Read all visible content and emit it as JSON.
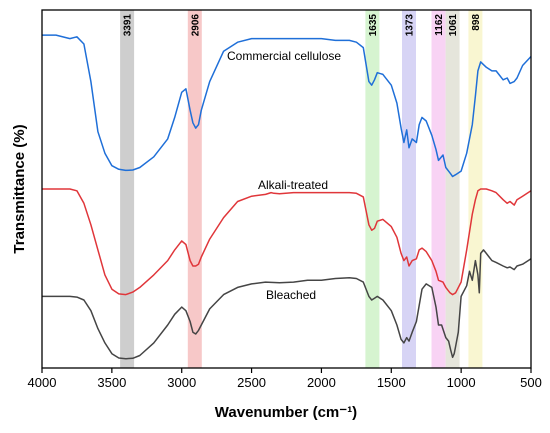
{
  "chart_data": {
    "type": "line",
    "title": "",
    "xlabel": "Wavenumber (cm⁻¹)",
    "ylabel": "Transmittance (%)",
    "xlim": [
      4000,
      500
    ],
    "x_reversed": true,
    "x_ticks": [
      "4000",
      "3500",
      "3000",
      "2500",
      "2000",
      "1500",
      "1000",
      "500"
    ],
    "y_ticks_shown": false,
    "grid": false,
    "bands": [
      {
        "label": "3391",
        "x": 3391,
        "color": "#bdbdbd"
      },
      {
        "label": "2906",
        "x": 2906,
        "color": "#f4b6b6"
      },
      {
        "label": "1635",
        "x": 1635,
        "color": "#c8f0c0"
      },
      {
        "label": "1373",
        "x": 1373,
        "color": "#c9c6f2"
      },
      {
        "label": "1162",
        "x": 1162,
        "color": "#f5c4f0"
      },
      {
        "label": "1061",
        "x": 1061,
        "color": "#dcdccf"
      },
      {
        "label": "898",
        "x": 898,
        "color": "#f7f3c2"
      }
    ],
    "series": [
      {
        "name": "Commercial cellulose",
        "color": "#1f6fd8",
        "points": [
          [
            4000,
            0.93
          ],
          [
            3900,
            0.93
          ],
          [
            3800,
            0.92
          ],
          [
            3750,
            0.925
          ],
          [
            3700,
            0.905
          ],
          [
            3650,
            0.8
          ],
          [
            3600,
            0.66
          ],
          [
            3550,
            0.6
          ],
          [
            3500,
            0.565
          ],
          [
            3450,
            0.555
          ],
          [
            3400,
            0.552
          ],
          [
            3350,
            0.553
          ],
          [
            3300,
            0.56
          ],
          [
            3200,
            0.59
          ],
          [
            3100,
            0.64
          ],
          [
            3050,
            0.7
          ],
          [
            3000,
            0.77
          ],
          [
            2970,
            0.78
          ],
          [
            2940,
            0.72
          ],
          [
            2920,
            0.685
          ],
          [
            2900,
            0.67
          ],
          [
            2880,
            0.68
          ],
          [
            2860,
            0.72
          ],
          [
            2800,
            0.8
          ],
          [
            2700,
            0.885
          ],
          [
            2600,
            0.91
          ],
          [
            2500,
            0.92
          ],
          [
            2400,
            0.92
          ],
          [
            2300,
            0.92
          ],
          [
            2200,
            0.92
          ],
          [
            2100,
            0.92
          ],
          [
            2000,
            0.92
          ],
          [
            1900,
            0.915
          ],
          [
            1800,
            0.915
          ],
          [
            1750,
            0.91
          ],
          [
            1700,
            0.895
          ],
          [
            1660,
            0.8
          ],
          [
            1640,
            0.79
          ],
          [
            1620,
            0.805
          ],
          [
            1600,
            0.825
          ],
          [
            1560,
            0.82
          ],
          [
            1500,
            0.79
          ],
          [
            1460,
            0.74
          ],
          [
            1430,
            0.67
          ],
          [
            1410,
            0.63
          ],
          [
            1390,
            0.665
          ],
          [
            1373,
            0.615
          ],
          [
            1350,
            0.64
          ],
          [
            1320,
            0.63
          ],
          [
            1300,
            0.68
          ],
          [
            1280,
            0.7
          ],
          [
            1250,
            0.69
          ],
          [
            1210,
            0.65
          ],
          [
            1180,
            0.61
          ],
          [
            1162,
            0.58
          ],
          [
            1130,
            0.595
          ],
          [
            1110,
            0.56
          ],
          [
            1080,
            0.545
          ],
          [
            1061,
            0.535
          ],
          [
            1040,
            0.54
          ],
          [
            1000,
            0.55
          ],
          [
            960,
            0.6
          ],
          [
            920,
            0.68
          ],
          [
            898,
            0.76
          ],
          [
            880,
            0.83
          ],
          [
            860,
            0.855
          ],
          [
            820,
            0.84
          ],
          [
            780,
            0.83
          ],
          [
            750,
            0.83
          ],
          [
            700,
            0.805
          ],
          [
            670,
            0.81
          ],
          [
            650,
            0.795
          ],
          [
            620,
            0.8
          ],
          [
            600,
            0.81
          ],
          [
            560,
            0.845
          ],
          [
            500,
            0.87
          ]
        ]
      },
      {
        "name": "Alkali-treated",
        "color": "#e0363a",
        "points": [
          [
            4000,
            0.5
          ],
          [
            3900,
            0.5
          ],
          [
            3800,
            0.5
          ],
          [
            3750,
            0.495
          ],
          [
            3700,
            0.46
          ],
          [
            3650,
            0.4
          ],
          [
            3600,
            0.33
          ],
          [
            3550,
            0.26
          ],
          [
            3500,
            0.22
          ],
          [
            3450,
            0.207
          ],
          [
            3400,
            0.205
          ],
          [
            3350,
            0.212
          ],
          [
            3300,
            0.225
          ],
          [
            3200,
            0.26
          ],
          [
            3100,
            0.3
          ],
          [
            3050,
            0.33
          ],
          [
            3000,
            0.355
          ],
          [
            2970,
            0.345
          ],
          [
            2940,
            0.3
          ],
          [
            2920,
            0.285
          ],
          [
            2900,
            0.285
          ],
          [
            2880,
            0.29
          ],
          [
            2860,
            0.31
          ],
          [
            2800,
            0.36
          ],
          [
            2700,
            0.42
          ],
          [
            2600,
            0.465
          ],
          [
            2500,
            0.48
          ],
          [
            2400,
            0.485
          ],
          [
            2360,
            0.49
          ],
          [
            2340,
            0.488
          ],
          [
            2300,
            0.487
          ],
          [
            2200,
            0.49
          ],
          [
            2100,
            0.49
          ],
          [
            2000,
            0.49
          ],
          [
            1900,
            0.49
          ],
          [
            1800,
            0.49
          ],
          [
            1750,
            0.488
          ],
          [
            1700,
            0.478
          ],
          [
            1660,
            0.4
          ],
          [
            1640,
            0.385
          ],
          [
            1620,
            0.39
          ],
          [
            1600,
            0.41
          ],
          [
            1560,
            0.415
          ],
          [
            1500,
            0.395
          ],
          [
            1460,
            0.365
          ],
          [
            1430,
            0.32
          ],
          [
            1410,
            0.3
          ],
          [
            1390,
            0.31
          ],
          [
            1373,
            0.285
          ],
          [
            1350,
            0.3
          ],
          [
            1320,
            0.305
          ],
          [
            1300,
            0.33
          ],
          [
            1280,
            0.335
          ],
          [
            1250,
            0.325
          ],
          [
            1210,
            0.3
          ],
          [
            1180,
            0.27
          ],
          [
            1162,
            0.245
          ],
          [
            1130,
            0.24
          ],
          [
            1110,
            0.225
          ],
          [
            1080,
            0.21
          ],
          [
            1061,
            0.205
          ],
          [
            1040,
            0.21
          ],
          [
            1000,
            0.24
          ],
          [
            960,
            0.33
          ],
          [
            920,
            0.43
          ],
          [
            898,
            0.47
          ],
          [
            880,
            0.495
          ],
          [
            860,
            0.5
          ],
          [
            820,
            0.5
          ],
          [
            780,
            0.495
          ],
          [
            750,
            0.49
          ],
          [
            700,
            0.47
          ],
          [
            670,
            0.46
          ],
          [
            650,
            0.465
          ],
          [
            620,
            0.455
          ],
          [
            600,
            0.47
          ],
          [
            560,
            0.48
          ],
          [
            500,
            0.495
          ]
        ]
      },
      {
        "name": "Bleached",
        "color": "#454545",
        "points": [
          [
            4000,
            0.2
          ],
          [
            3900,
            0.2
          ],
          [
            3800,
            0.2
          ],
          [
            3750,
            0.198
          ],
          [
            3700,
            0.19
          ],
          [
            3650,
            0.16
          ],
          [
            3600,
            0.11
          ],
          [
            3550,
            0.07
          ],
          [
            3500,
            0.04
          ],
          [
            3450,
            0.028
          ],
          [
            3400,
            0.026
          ],
          [
            3350,
            0.027
          ],
          [
            3300,
            0.035
          ],
          [
            3200,
            0.07
          ],
          [
            3100,
            0.12
          ],
          [
            3050,
            0.15
          ],
          [
            3000,
            0.17
          ],
          [
            2970,
            0.16
          ],
          [
            2940,
            0.13
          ],
          [
            2920,
            0.1
          ],
          [
            2900,
            0.095
          ],
          [
            2880,
            0.105
          ],
          [
            2860,
            0.12
          ],
          [
            2800,
            0.165
          ],
          [
            2700,
            0.205
          ],
          [
            2600,
            0.225
          ],
          [
            2500,
            0.235
          ],
          [
            2400,
            0.24
          ],
          [
            2300,
            0.238
          ],
          [
            2200,
            0.24
          ],
          [
            2100,
            0.245
          ],
          [
            2000,
            0.245
          ],
          [
            1900,
            0.25
          ],
          [
            1800,
            0.252
          ],
          [
            1750,
            0.25
          ],
          [
            1700,
            0.24
          ],
          [
            1660,
            0.2
          ],
          [
            1640,
            0.19
          ],
          [
            1620,
            0.195
          ],
          [
            1600,
            0.2
          ],
          [
            1560,
            0.19
          ],
          [
            1500,
            0.16
          ],
          [
            1460,
            0.12
          ],
          [
            1430,
            0.08
          ],
          [
            1410,
            0.07
          ],
          [
            1390,
            0.085
          ],
          [
            1373,
            0.075
          ],
          [
            1350,
            0.1
          ],
          [
            1320,
            0.13
          ],
          [
            1300,
            0.175
          ],
          [
            1280,
            0.22
          ],
          [
            1250,
            0.235
          ],
          [
            1210,
            0.225
          ],
          [
            1180,
            0.17
          ],
          [
            1162,
            0.12
          ],
          [
            1140,
            0.12
          ],
          [
            1110,
            0.085
          ],
          [
            1090,
            0.075
          ],
          [
            1075,
            0.05
          ],
          [
            1061,
            0.03
          ],
          [
            1050,
            0.04
          ],
          [
            1040,
            0.06
          ],
          [
            1020,
            0.1
          ],
          [
            1000,
            0.2
          ],
          [
            960,
            0.23
          ],
          [
            940,
            0.27
          ],
          [
            920,
            0.245
          ],
          [
            898,
            0.3
          ],
          [
            880,
            0.26
          ],
          [
            870,
            0.21
          ],
          [
            860,
            0.32
          ],
          [
            840,
            0.33
          ],
          [
            820,
            0.32
          ],
          [
            800,
            0.31
          ],
          [
            780,
            0.3
          ],
          [
            750,
            0.295
          ],
          [
            700,
            0.285
          ],
          [
            670,
            0.28
          ],
          [
            650,
            0.282
          ],
          [
            620,
            0.275
          ],
          [
            600,
            0.285
          ],
          [
            560,
            0.29
          ],
          [
            520,
            0.3
          ],
          [
            500,
            0.305
          ]
        ]
      }
    ]
  },
  "series_labels": {
    "commercial": "Commercial cellulose",
    "alkali": "Alkali-treated",
    "bleached": "Bleached"
  }
}
